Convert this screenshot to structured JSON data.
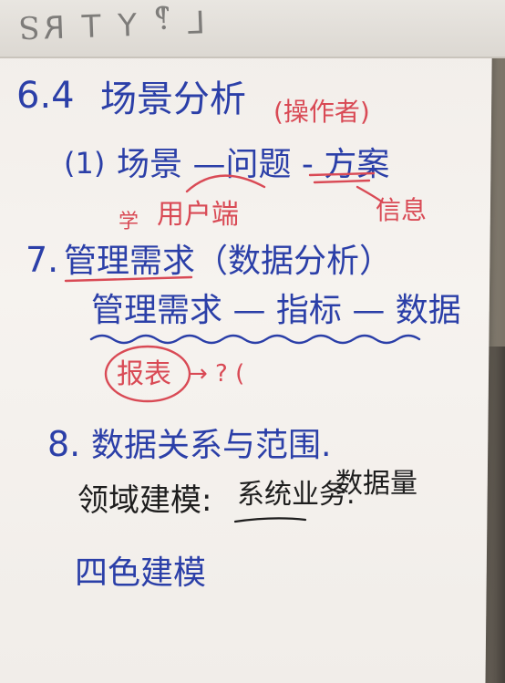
{
  "flipchart": {
    "lines": {
      "l1_num": "6.4",
      "l1_title": "场景分析",
      "l1_note": "(操作者)",
      "l2_num": "(1)",
      "l2_text": "场景 —问题 - 方案",
      "l2_note": "信息",
      "l3_note": "用户端",
      "l4_num": "7.",
      "l4_text": "管理需求（数据分析）",
      "l4_note": "学",
      "l5_text": "管理需求 — 指标 — 数据",
      "l6_circled": "报表",
      "l6_rest": "→ ? (",
      "l7_num": "8.",
      "l7_text": "数据关系与范围.",
      "l8_a": "领域建模:",
      "l8_b": "系统业务.",
      "l8_c": "数据量",
      "l9_text": "四色建模"
    }
  }
}
